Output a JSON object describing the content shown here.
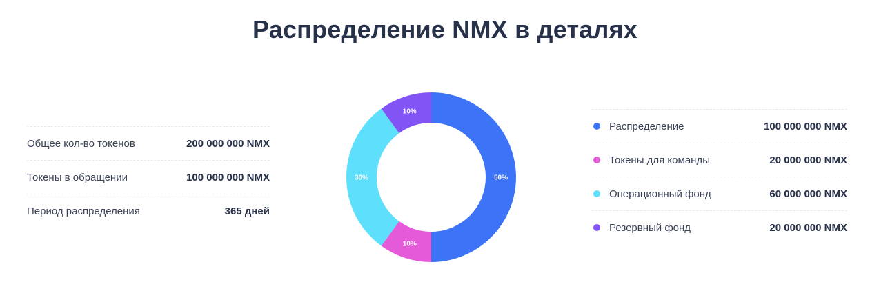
{
  "title": "Распределение NMX в деталях",
  "stats": [
    {
      "label": "Общее кол-во токенов",
      "value": "200 000 000 NMX"
    },
    {
      "label": "Токены в обращении",
      "value": "100 000 000 NMX"
    },
    {
      "label": "Период распределения",
      "value": "365 дней"
    }
  ],
  "chart_data": {
    "type": "pie",
    "variant": "donut",
    "categories": [
      "Распределение",
      "Токены для команды",
      "Операционный фонд",
      "Резервный фонд"
    ],
    "values": [
      100000000,
      20000000,
      60000000,
      20000000
    ],
    "unit": "NMX",
    "value_labels": [
      "100 000 000 NMX",
      "20 000 000 NMX",
      "60 000 000 NMX",
      "20 000 000 NMX"
    ],
    "percent_labels": [
      "50%",
      "10%",
      "30%",
      "10%"
    ],
    "colors": [
      "#3d73f7",
      "#e45ad8",
      "#5ee0fc",
      "#8254f6"
    ],
    "legend_position": "right"
  }
}
